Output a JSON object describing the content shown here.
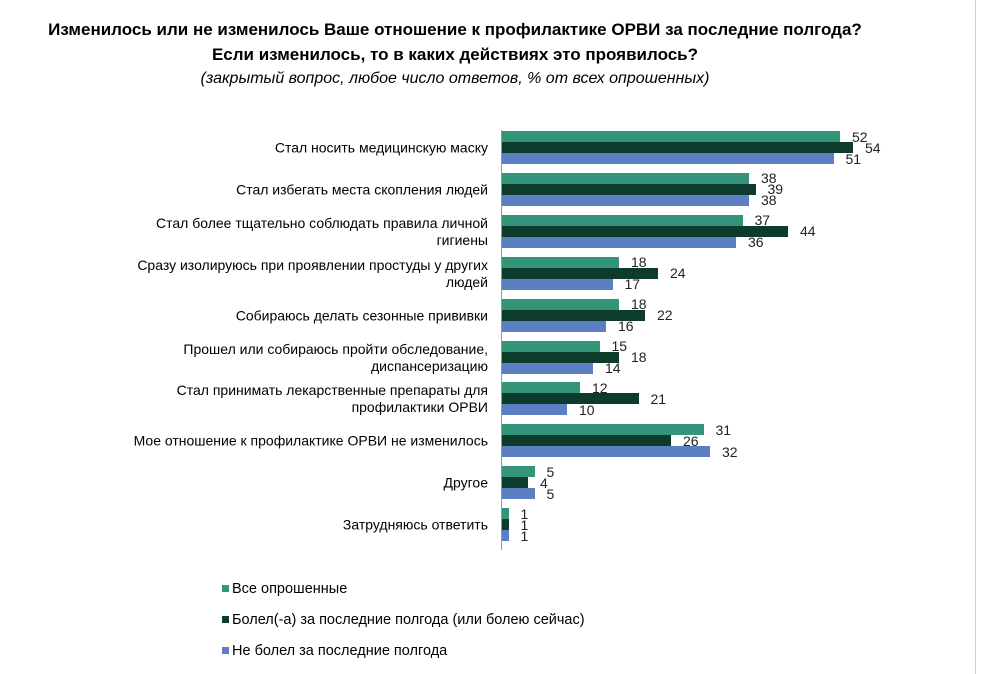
{
  "chart_data": {
    "type": "bar",
    "orientation": "horizontal",
    "title": "Изменилось или не изменилось Ваше отношение к профилактике ОРВИ за последние полгода?",
    "title_line2": "Если изменилось, то в каких действиях это проявилось?",
    "subtitle": "(закрытый вопрос, любое число ответов, % от всех опрошенных)",
    "categories": [
      [
        "Стал носить медицинскую маску"
      ],
      [
        "Стал избегать места скопления людей"
      ],
      [
        "Стал более тщательно соблюдать правила личной",
        "гигиены"
      ],
      [
        "Сразу изолируюсь при проявлении простуды у других",
        "людей"
      ],
      [
        "Собираюсь делать сезонные прививки"
      ],
      [
        "Прошел или собираюсь пройти обследование,",
        "диспансеризацию"
      ],
      [
        "Стал принимать лекарственные препараты для",
        "профилактики ОРВИ"
      ],
      [
        "Мое отношение к профилактике ОРВИ не изменилось"
      ],
      [
        "Другое"
      ],
      [
        "Затрудняюсь ответить"
      ]
    ],
    "series": [
      {
        "name": "Все опрошенные",
        "color": "#339479",
        "values": [
          52,
          38,
          37,
          18,
          18,
          15,
          12,
          31,
          5,
          1
        ]
      },
      {
        "name": "Болел(-а)  за последние полгода (или болею сейчас)",
        "color": "#0d3b2c",
        "values": [
          54,
          39,
          44,
          24,
          22,
          18,
          21,
          26,
          4,
          1
        ]
      },
      {
        "name": "Не болел за последние полгода",
        "color": "#5b80c2",
        "values": [
          51,
          38,
          36,
          17,
          16,
          14,
          10,
          32,
          5,
          1
        ]
      }
    ],
    "xlim": [
      0,
      60
    ],
    "grid": false,
    "legend": "bottom-left"
  }
}
